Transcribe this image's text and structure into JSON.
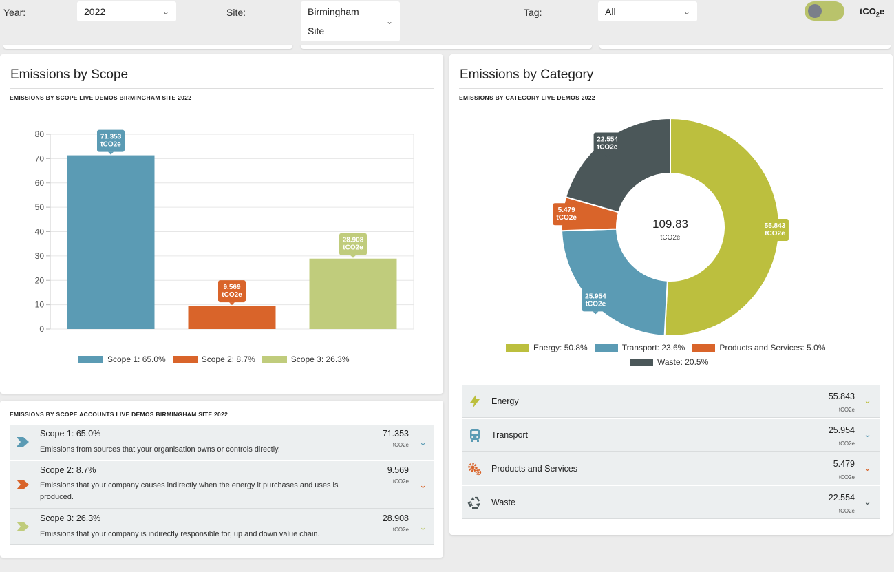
{
  "filters": {
    "year_label": "Year:",
    "year_value": "2022",
    "site_label": "Site:",
    "site_value_line1": "Birmingham",
    "site_value_line2": "Site",
    "tag_label": "Tag:",
    "tag_value": "All",
    "unit_label_main": "tCO",
    "unit_label_sub": "2",
    "unit_label_end": "e"
  },
  "scope_panel": {
    "title": "Emissions by Scope",
    "subtitle": "EMISSIONS BY SCOPE LIVE DEMOS BIRMINGHAM SITE 2022"
  },
  "category_panel": {
    "title": "Emissions by Category",
    "subtitle": "EMISSIONS BY CATEGORY LIVE DEMOS  2022",
    "center_value": "109.83",
    "center_unit": "tCO2e"
  },
  "colors": {
    "scope1": "#5b9bb4",
    "scope2": "#d9642a",
    "scope3": "#c0cc7c",
    "energy": "#bcbf3e",
    "transport": "#5b9bb4",
    "products": "#d9642a",
    "waste": "#4b5759"
  },
  "chart_data": [
    {
      "type": "bar",
      "categories": [
        "Scope 1",
        "Scope 2",
        "Scope 3"
      ],
      "values": [
        71.353,
        9.569,
        28.908
      ],
      "data_labels": [
        [
          "71.353",
          "tCO2e"
        ],
        [
          "9.569",
          "tCO2e"
        ],
        [
          "28.908",
          "tCO2e"
        ]
      ],
      "legend": [
        "Scope 1: 65.0%",
        "Scope 2: 8.7%",
        "Scope 3: 26.3%"
      ],
      "legend_placement": "bottom",
      "ylim": [
        0,
        80
      ],
      "yticks": [
        "0",
        "10",
        "20",
        "30",
        "40",
        "50",
        "60",
        "70",
        "80"
      ],
      "grid": true
    },
    {
      "type": "pie",
      "donut": true,
      "categories": [
        "Energy",
        "Transport",
        "Products and Services",
        "Waste"
      ],
      "values": [
        55.843,
        25.954,
        5.479,
        22.554
      ],
      "data_labels": [
        [
          "55.843",
          "tCO2e"
        ],
        [
          "25.954",
          "tCO2e"
        ],
        [
          "5.479",
          "tCO2e"
        ],
        [
          "22.554",
          "tCO2e"
        ]
      ],
      "legend": [
        "Energy: 50.8%",
        "Transport: 23.6%",
        "Products and Services: 5.0%",
        "Waste: 20.5%"
      ],
      "legend_placement": "bottom"
    }
  ],
  "accounts": {
    "subtitle": "EMISSIONS BY SCOPE ACCOUNTS LIVE DEMOS BIRMINGHAM SITE 2022",
    "rows": [
      {
        "title": "Scope 1: 65.0%",
        "desc": "Emissions from sources that your organisation owns or controls directly.",
        "value": "71.353",
        "unit": "tCO2e"
      },
      {
        "title": "Scope 2: 8.7%",
        "desc": "Emissions that your company causes indirectly when the energy it purchases and uses is produced.",
        "value": "9.569",
        "unit": "tCO2e"
      },
      {
        "title": "Scope 3: 26.3%",
        "desc": "Emissions that your company is indirectly responsible for, up and down value chain.",
        "value": "28.908",
        "unit": "tCO2e"
      }
    ]
  },
  "categories_list": [
    {
      "label": "Energy",
      "value": "55.843",
      "unit": "tCO2e",
      "icon": "lightning-icon"
    },
    {
      "label": "Transport",
      "value": "25.954",
      "unit": "tCO2e",
      "icon": "bus-icon"
    },
    {
      "label": "Products and Services",
      "value": "5.479",
      "unit": "tCO2e",
      "icon": "gears-icon"
    },
    {
      "label": "Waste",
      "value": "22.554",
      "unit": "tCO2e",
      "icon": "recycle-icon"
    }
  ]
}
